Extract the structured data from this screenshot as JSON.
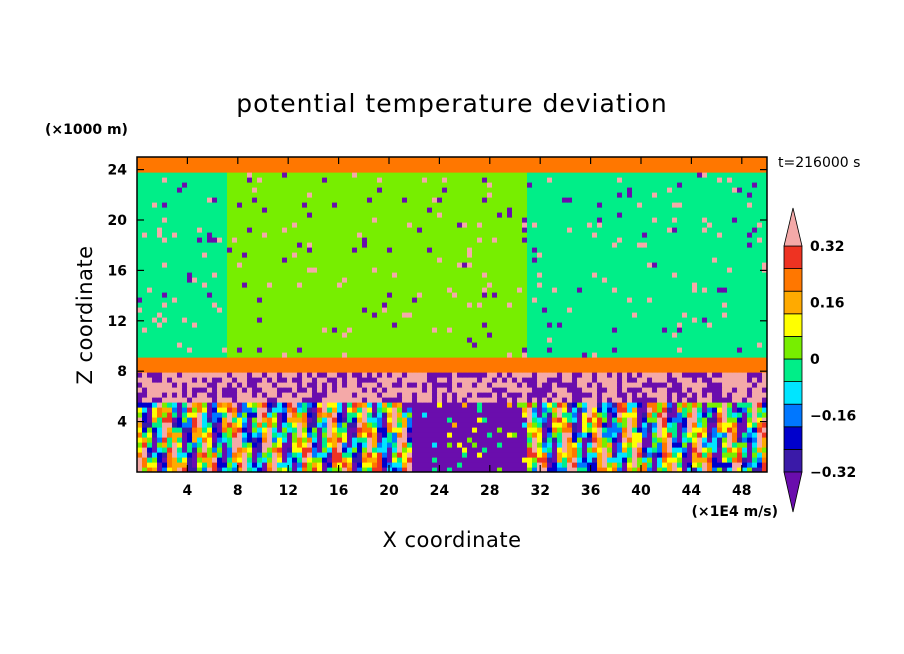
{
  "chart_data": {
    "type": "heatmap",
    "title": "potential temperature deviation",
    "xlabel": "X coordinate",
    "ylabel": "Z coordinate",
    "x_unit": "(×1E4 m/s)",
    "y_unit": "(×1000 m)",
    "time_label": "t=216000 s",
    "xlim": [
      0,
      50
    ],
    "ylim": [
      0,
      25
    ],
    "x_ticks": [
      4,
      8,
      12,
      16,
      20,
      24,
      28,
      32,
      36,
      40,
      44,
      48
    ],
    "y_ticks": [
      4,
      8,
      12,
      16,
      20,
      24
    ],
    "colorbar": {
      "levels": [
        -0.4,
        -0.32,
        -0.24,
        -0.16,
        -0.08,
        0,
        0.08,
        0.16,
        0.24,
        0.32,
        0.4
      ],
      "labeled_levels": [
        "0.32",
        "0.16",
        "0",
        "−0.16",
        "−0.32"
      ],
      "labeled_values": [
        0.32,
        0.16,
        0,
        -0.16,
        -0.32
      ],
      "colors": [
        "#6a0dad",
        "#3a1aa8",
        "#0000cc",
        "#0077ff",
        "#00e5ff",
        "#00ee88",
        "#77ee00",
        "#ffff00",
        "#ffaa00",
        "#ff7700",
        "#ee3322",
        "#f4a9a8"
      ],
      "extend": "both"
    },
    "regions": [
      {
        "name": "upper stratosphere band",
        "x": [
          0,
          50
        ],
        "z": [
          24,
          25
        ],
        "value": 0.3
      },
      {
        "name": "upper layer left",
        "x": [
          0,
          7
        ],
        "z": [
          9,
          24
        ],
        "value": -0.04
      },
      {
        "name": "upper layer center",
        "x": [
          7,
          31
        ],
        "z": [
          9,
          24
        ],
        "value": 0.04
      },
      {
        "name": "upper layer right",
        "x": [
          31,
          50
        ],
        "z": [
          9,
          24
        ],
        "value": -0.04
      },
      {
        "name": "warm band",
        "x": [
          0,
          50
        ],
        "z": [
          8,
          9
        ],
        "value": 0.24
      },
      {
        "name": "pink layer",
        "x": [
          0,
          50
        ],
        "z": [
          5.5,
          8
        ],
        "value": 0.45
      },
      {
        "name": "lower turbulent left",
        "x": [
          0,
          22
        ],
        "z": [
          0,
          5.5
        ],
        "value": 0.2
      },
      {
        "name": "lower cold center",
        "x": [
          22,
          31
        ],
        "z": [
          0,
          5.5
        ],
        "value": -0.45
      },
      {
        "name": "lower turbulent right",
        "x": [
          31,
          50
        ],
        "z": [
          0,
          5.5
        ],
        "value": 0.2
      }
    ]
  }
}
